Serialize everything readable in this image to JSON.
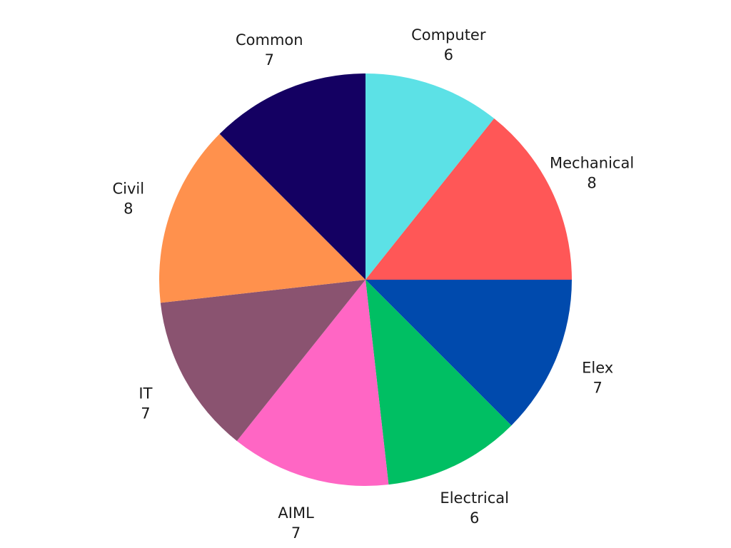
{
  "chart_data": {
    "type": "pie",
    "start": "12 o'clock",
    "direction": "clockwise",
    "slices": [
      {
        "label": "Computer",
        "value": 6,
        "color": "#5ce1e6"
      },
      {
        "label": "Mechanical",
        "value": 8,
        "color": "#ff5757"
      },
      {
        "label": "Elex",
        "value": 7,
        "color": "#004aad"
      },
      {
        "label": "Electrical",
        "value": 6,
        "color": "#00bf63"
      },
      {
        "label": "AIML",
        "value": 7,
        "color": "#ff66c4"
      },
      {
        "label": "IT",
        "value": 7,
        "color": "#8c52ff"
      },
      {
        "label": "Civil",
        "value": 8,
        "color": "#ff914d"
      },
      {
        "label": "Common",
        "value": 7,
        "color": "#140062"
      }
    ]
  }
}
